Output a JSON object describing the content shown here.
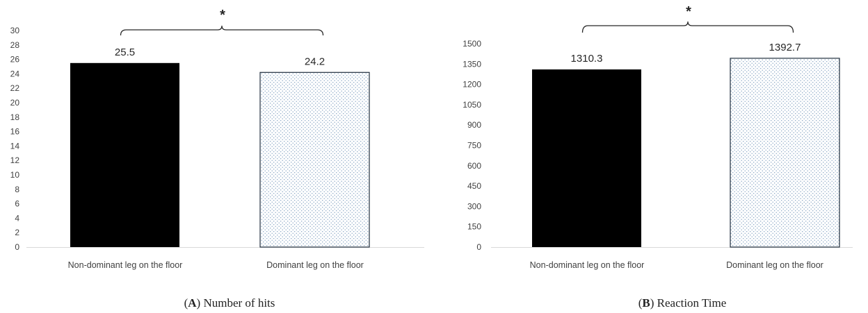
{
  "chart_data": [
    {
      "type": "bar",
      "panel_letter": "A",
      "caption_title": "Number of hits",
      "categories": [
        "Non-dominant leg on the floor",
        "Dominant leg on the floor"
      ],
      "values": [
        25.5,
        24.2
      ],
      "data_labels": [
        "25.5",
        "24.2"
      ],
      "bar_styles": [
        "solid",
        "dotted"
      ],
      "ylim": [
        0,
        30
      ],
      "yticks": [
        0,
        2,
        4,
        6,
        8,
        10,
        12,
        14,
        16,
        18,
        20,
        22,
        24,
        26,
        28,
        30
      ],
      "significance": "*",
      "grid": false,
      "colors": {
        "solid": "#000000",
        "dotted_fill": "#ffffff",
        "dotted_dots": "#7f9fbf",
        "dotted_border": "#1f2d3d"
      }
    },
    {
      "type": "bar",
      "panel_letter": "B",
      "caption_title": "Reaction Time",
      "categories": [
        "Non-dominant leg on the floor",
        "Dominant leg on the floor"
      ],
      "values": [
        1310.3,
        1392.7
      ],
      "data_labels": [
        "1310.3",
        "1392.7"
      ],
      "bar_styles": [
        "solid",
        "dotted"
      ],
      "ylim": [
        0,
        1500
      ],
      "yticks": [
        0,
        150,
        300,
        450,
        600,
        750,
        900,
        1050,
        1200,
        1350,
        1500
      ],
      "significance": "*",
      "grid": false,
      "colors": {
        "solid": "#000000",
        "dotted_fill": "#ffffff",
        "dotted_dots": "#7f9fbf",
        "dotted_border": "#1f2d3d"
      }
    }
  ]
}
